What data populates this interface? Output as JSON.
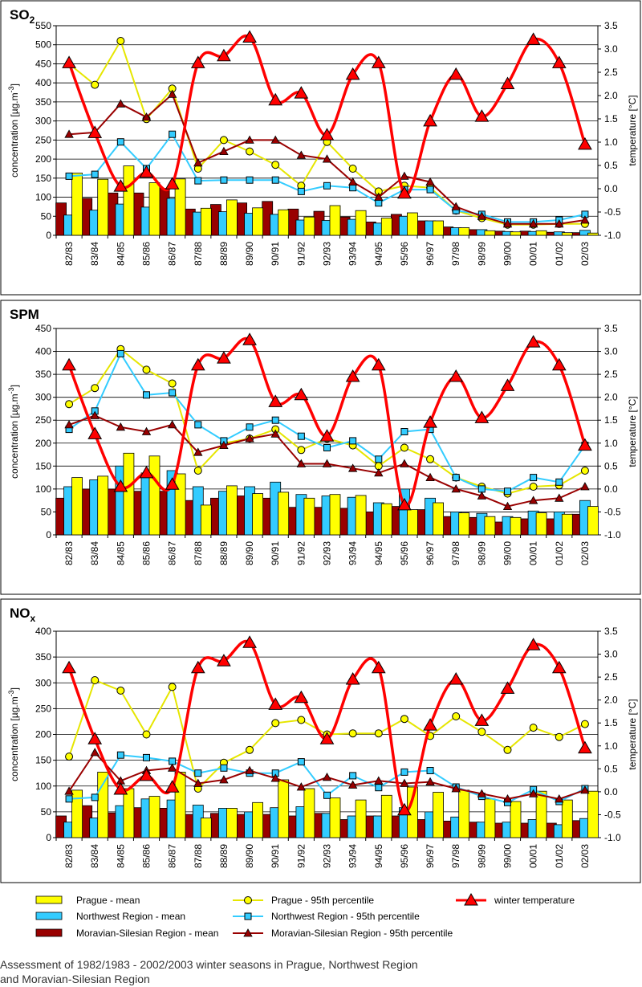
{
  "chart_data": [
    {
      "type": "bar",
      "title": "SO",
      "title_sub": "2",
      "ylabel": "concentration  [µg.m",
      "ylabel_sup": "-3",
      "ylabel_end": "]",
      "y2label": "temperature [°C]",
      "ylim": [
        0,
        550
      ],
      "y_ticks": [
        0,
        50,
        100,
        150,
        200,
        250,
        300,
        350,
        400,
        450,
        500,
        550
      ],
      "y2lim": [
        -1.0,
        3.5
      ],
      "y2_ticks": [
        "-1.0",
        "-0.5",
        "0.0",
        "0.5",
        "1.0",
        "1.5",
        "2.0",
        "2.5",
        "3.0",
        "3.5"
      ],
      "grid": true,
      "categories": [
        "82/83",
        "83/84",
        "84/85",
        "85/86",
        "86/87",
        "87/88",
        "88/89",
        "89/90",
        "90/91",
        "91/92",
        "92/93",
        "93/94",
        "94/95",
        "95/96",
        "96/97",
        "97/98",
        "98/99",
        "99/00",
        "00/01",
        "01/02",
        "02/03"
      ],
      "series": [
        {
          "name": "Moravian-Silesian Region - mean",
          "kind": "bar",
          "color": "#990000",
          "values": [
            85,
            97,
            111,
            111,
            123,
            69,
            81,
            85,
            89,
            69,
            63,
            48,
            35,
            55,
            38,
            22,
            15,
            11,
            11,
            8,
            7
          ]
        },
        {
          "name": "Northwest Region - mean",
          "kind": "bar",
          "color": "#33ccff",
          "values": [
            53,
            66,
            82,
            74,
            97,
            61,
            62,
            58,
            55,
            40,
            39,
            42,
            32,
            50,
            38,
            20,
            15,
            10,
            10,
            9,
            13
          ]
        },
        {
          "name": "Prague - mean",
          "kind": "bar",
          "color": "#ffff00",
          "values": [
            163,
            147,
            182,
            138,
            148,
            71,
            93,
            72,
            67,
            48,
            78,
            65,
            45,
            59,
            38,
            20,
            12,
            9,
            12,
            7,
            6
          ]
        },
        {
          "name": "Prague - 95th percentile",
          "kind": "line",
          "marker": "circle",
          "color": "#ffff00",
          "values": [
            450,
            395,
            510,
            305,
            385,
            175,
            250,
            220,
            185,
            130,
            245,
            175,
            115,
            130,
            125,
            65,
            45,
            28,
            28,
            30,
            30
          ]
        },
        {
          "name": "Northwest Region - 95th percentile",
          "kind": "line",
          "marker": "square",
          "color": "#33ccff",
          "values": [
            155,
            160,
            245,
            175,
            265,
            143,
            145,
            145,
            145,
            115,
            130,
            125,
            85,
            120,
            120,
            65,
            55,
            35,
            35,
            40,
            55
          ]
        },
        {
          "name": "Moravian-Silesian Region - 95th percentile",
          "kind": "line",
          "marker": "triangle-small",
          "color": "#990000",
          "values": [
            265,
            270,
            345,
            310,
            370,
            190,
            220,
            250,
            250,
            210,
            200,
            140,
            100,
            155,
            140,
            75,
            50,
            30,
            30,
            30,
            40
          ]
        },
        {
          "name": "winter temperature",
          "kind": "line",
          "marker": "triangle",
          "color": "#ff0000",
          "axis": "y2",
          "values": [
            2.7,
            1.2,
            0.05,
            0.35,
            0.1,
            2.7,
            2.85,
            3.25,
            1.9,
            2.05,
            1.15,
            2.45,
            2.7,
            -0.1,
            1.45,
            2.45,
            1.55,
            2.25,
            3.2,
            2.7,
            0.95
          ]
        }
      ]
    },
    {
      "type": "bar",
      "title": "SPM",
      "title_sub": "",
      "ylabel": "concentration  [µg.m",
      "ylabel_sup": "-3",
      "ylabel_end": "]",
      "y2label": "temperature [°C]",
      "ylim": [
        0,
        450
      ],
      "y_ticks": [
        0,
        50,
        100,
        150,
        200,
        250,
        300,
        350,
        400,
        450
      ],
      "y2lim": [
        -1.0,
        3.5
      ],
      "y2_ticks": [
        "-1.0",
        "-0.5",
        "0.0",
        "0.5",
        "1.0",
        "1.5",
        "2.0",
        "2.5",
        "3.0",
        "3.5"
      ],
      "grid": true,
      "categories": [
        "82/83",
        "83/84",
        "84/85",
        "85/86",
        "86/87",
        "87/88",
        "88/89",
        "89/90",
        "90/91",
        "91/92",
        "92/93",
        "93/94",
        "94/95",
        "95/96",
        "96/97",
        "97/98",
        "98/99",
        "99/00",
        "00/01",
        "01/02",
        "02/03"
      ],
      "series": [
        {
          "name": "Moravian-Silesian Region - mean",
          "kind": "bar",
          "color": "#990000",
          "values": [
            80,
            100,
            100,
            95,
            95,
            75,
            80,
            85,
            80,
            60,
            60,
            58,
            50,
            62,
            55,
            40,
            38,
            28,
            35,
            35,
            45
          ]
        },
        {
          "name": "Northwest Region - mean",
          "kind": "bar",
          "color": "#33ccff",
          "values": [
            105,
            120,
            150,
            135,
            140,
            105,
            95,
            105,
            115,
            88,
            85,
            82,
            70,
            100,
            80,
            50,
            47,
            40,
            52,
            50,
            75
          ]
        },
        {
          "name": "Prague - mean",
          "kind": "bar",
          "color": "#ffff00",
          "values": [
            125,
            128,
            178,
            172,
            133,
            65,
            107,
            90,
            93,
            80,
            88,
            86,
            68,
            55,
            70,
            48,
            40,
            38,
            48,
            45,
            62
          ]
        },
        {
          "name": "Prague - 95th percentile",
          "kind": "line",
          "marker": "circle",
          "color": "#ffff00",
          "values": [
            285,
            320,
            405,
            360,
            330,
            140,
            200,
            210,
            230,
            185,
            210,
            195,
            150,
            190,
            165,
            125,
            105,
            90,
            105,
            108,
            140
          ]
        },
        {
          "name": "Northwest Region - 95th percentile",
          "kind": "line",
          "marker": "square",
          "color": "#33ccff",
          "values": [
            230,
            270,
            395,
            305,
            310,
            240,
            205,
            235,
            250,
            215,
            190,
            205,
            165,
            225,
            230,
            125,
            100,
            95,
            125,
            115,
            195
          ]
        },
        {
          "name": "Moravian-Silesian Region - 95th percentile",
          "kind": "line",
          "marker": "triangle-small",
          "color": "#990000",
          "values": [
            240,
            260,
            235,
            225,
            240,
            180,
            195,
            210,
            220,
            155,
            155,
            145,
            135,
            155,
            125,
            100,
            85,
            62,
            75,
            80,
            105
          ]
        },
        {
          "name": "winter temperature",
          "kind": "line",
          "marker": "triangle",
          "color": "#ff0000",
          "axis": "y2",
          "values": [
            2.7,
            1.2,
            0.05,
            0.35,
            0.1,
            2.7,
            2.85,
            3.25,
            1.9,
            2.05,
            1.15,
            2.45,
            2.7,
            -0.35,
            1.45,
            2.45,
            1.55,
            2.25,
            3.2,
            2.7,
            0.95
          ]
        }
      ]
    },
    {
      "type": "bar",
      "title": "NO",
      "title_sub": "x",
      "ylabel": "concentration  [µg.m",
      "ylabel_sup": "-3",
      "ylabel_end": "]",
      "y2label": "temperature [°C]",
      "ylim": [
        0,
        400
      ],
      "y_ticks": [
        0,
        50,
        100,
        150,
        200,
        250,
        300,
        350,
        400
      ],
      "y2lim": [
        -1.0,
        3.5
      ],
      "y2_ticks": [
        "-1.0",
        "-0.5",
        "0.0",
        "0.5",
        "1.0",
        "1.5",
        "2.0",
        "2.5",
        "3.0",
        "3.5"
      ],
      "grid": true,
      "categories": [
        "82/83",
        "83/84",
        "84/85",
        "85/86",
        "86/87",
        "87/88",
        "88/89",
        "89/90",
        "90/91",
        "91/92",
        "92/93",
        "93/94",
        "94/95",
        "95/96",
        "96/97",
        "97/98",
        "98/99",
        "99/00",
        "00/01",
        "01/02",
        "02/03"
      ],
      "series": [
        {
          "name": "Moravian-Silesian Region - mean",
          "kind": "bar",
          "color": "#990000",
          "values": [
            42,
            62,
            48,
            58,
            57,
            45,
            47,
            45,
            45,
            42,
            47,
            35,
            42,
            42,
            35,
            32,
            30,
            28,
            28,
            28,
            33
          ]
        },
        {
          "name": "Northwest Region - mean",
          "kind": "bar",
          "color": "#33ccff",
          "values": [
            30,
            38,
            62,
            75,
            73,
            63,
            57,
            50,
            58,
            60,
            47,
            42,
            42,
            58,
            50,
            40,
            30,
            30,
            35,
            25,
            37
          ]
        },
        {
          "name": "Prague - mean",
          "kind": "bar",
          "color": "#ffff00",
          "values": [
            92,
            127,
            95,
            80,
            127,
            38,
            57,
            68,
            112,
            95,
            77,
            73,
            82,
            98,
            88,
            92,
            75,
            70,
            90,
            73,
            90
          ]
        },
        {
          "name": "Prague - 95th percentile",
          "kind": "line",
          "marker": "circle",
          "color": "#ffff00",
          "values": [
            157,
            305,
            285,
            200,
            292,
            95,
            145,
            170,
            222,
            228,
            200,
            202,
            202,
            230,
            197,
            235,
            205,
            170,
            213,
            195,
            220
          ]
        },
        {
          "name": "Northwest Region - 95th percentile",
          "kind": "line",
          "marker": "square",
          "color": "#33ccff",
          "values": [
            75,
            78,
            160,
            155,
            148,
            125,
            135,
            125,
            125,
            147,
            82,
            120,
            97,
            127,
            130,
            98,
            80,
            68,
            93,
            70,
            95
          ]
        },
        {
          "name": "Moravian-Silesian Region - 95th percentile",
          "kind": "line",
          "marker": "triangle-small",
          "color": "#990000",
          "values": [
            90,
            165,
            110,
            130,
            135,
            105,
            112,
            130,
            115,
            98,
            117,
            102,
            110,
            105,
            108,
            95,
            85,
            75,
            85,
            75,
            92
          ]
        },
        {
          "name": "winter temperature",
          "kind": "line",
          "marker": "triangle",
          "color": "#ff0000",
          "axis": "y2",
          "values": [
            2.7,
            1.15,
            0.05,
            0.35,
            0.1,
            2.7,
            2.85,
            3.25,
            1.9,
            2.05,
            1.15,
            2.45,
            2.7,
            -0.4,
            1.45,
            2.45,
            1.55,
            2.25,
            3.2,
            2.7,
            0.95
          ]
        }
      ]
    }
  ],
  "legend": {
    "items": [
      {
        "label": "Prague - mean",
        "kind": "bar",
        "color": "#ffff00"
      },
      {
        "label": "Prague - 95th percentile",
        "kind": "line",
        "marker": "circle",
        "color": "#ffff00"
      },
      {
        "label": "winter temperature",
        "kind": "line",
        "marker": "triangle",
        "color": "#ff0000"
      },
      {
        "label": "Northwest Region - mean",
        "kind": "bar",
        "color": "#33ccff"
      },
      {
        "label": "Northwest Region - 95th percentile",
        "kind": "line",
        "marker": "square",
        "color": "#33ccff"
      },
      {
        "label": "Moravian-Silesian Region - mean",
        "kind": "bar",
        "color": "#990000"
      },
      {
        "label": "Moravian-Silesian Region - 95th percentile",
        "kind": "line",
        "marker": "triangle-small",
        "color": "#990000"
      }
    ]
  },
  "caption": {
    "line1": "Assessment of 1982/1983 - 2002/2003 winter seasons in Prague, Northwest Region",
    "line2": "and Moravian-Silesian Region"
  }
}
